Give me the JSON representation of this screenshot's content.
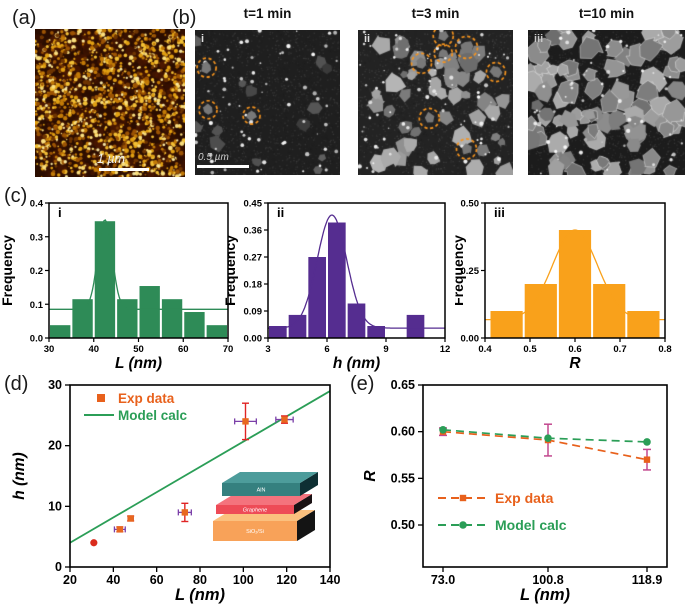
{
  "figure": {
    "panel_a": {
      "label": "(a)",
      "scale_bar_label": "1 µm"
    },
    "panel_b": {
      "label": "(b)",
      "images": [
        {
          "index_label": "i",
          "title": "t=1 min",
          "scale_bar_label": "0.5 µm"
        },
        {
          "index_label": "ii",
          "title": "t=3 min"
        },
        {
          "index_label": "iii",
          "title": "t=10 min"
        }
      ]
    },
    "panel_c": {
      "label": "(c)"
    },
    "panel_d": {
      "label": "(d)"
    },
    "panel_e": {
      "label": "(e)"
    }
  },
  "chart_data": [
    {
      "id": "c-i",
      "type": "bar",
      "index_label": "i",
      "xlabel": "L (nm)",
      "ylabel": "Frequency",
      "xlim": [
        30,
        70
      ],
      "ylim": [
        0,
        0.4
      ],
      "xticks": [
        30,
        40,
        50,
        60,
        70
      ],
      "yticks": [
        0,
        0.1,
        0.2,
        0.3,
        0.4
      ],
      "ytick_decimals": 1,
      "bar_color": "#2e8b57",
      "bin_edges": [
        30,
        35,
        40,
        45,
        50,
        55,
        60,
        65,
        70
      ],
      "values": [
        0.038,
        0.115,
        0.346,
        0.115,
        0.154,
        0.115,
        0.077,
        0.038
      ],
      "fit_curve": {
        "baseline": 0.085,
        "peak_x": 42.5,
        "peak_y": 0.35,
        "sigma": 1.6
      }
    },
    {
      "id": "c-ii",
      "type": "bar",
      "index_label": "ii",
      "xlabel": "h (nm)",
      "ylabel": "Frequency",
      "xlim": [
        3,
        12
      ],
      "ylim": [
        0,
        0.45
      ],
      "xticks": [
        3,
        6,
        9,
        12
      ],
      "yticks": [
        0,
        0.09,
        0.18,
        0.27,
        0.36,
        0.45
      ],
      "ytick_decimals": 2,
      "bar_color": "#552d90",
      "bin_edges": [
        3,
        4,
        5,
        6,
        7,
        8,
        9,
        10,
        11
      ],
      "values": [
        0.04,
        0.077,
        0.27,
        0.385,
        0.115,
        0.04,
        0,
        0.077
      ],
      "fit_curve": {
        "baseline": 0.033,
        "peak_x": 6.25,
        "peak_y": 0.41,
        "sigma": 0.75
      }
    },
    {
      "id": "c-iii",
      "type": "bar",
      "index_label": "iii",
      "xlabel": "R",
      "ylabel": "Frequency",
      "xlim": [
        0.4,
        0.8
      ],
      "ylim": [
        0,
        0.5
      ],
      "xticks": [
        0.4,
        0.5,
        0.6,
        0.7,
        0.8
      ],
      "xtick_decimals": 1,
      "yticks": [
        0,
        0.25,
        0.5
      ],
      "ytick_decimals": 2,
      "bar_color": "#f9a11b",
      "bin_edges": [
        0.41,
        0.486,
        0.562,
        0.638,
        0.714,
        0.79
      ],
      "values": [
        0.1,
        0.2,
        0.4,
        0.2,
        0.1
      ],
      "fit_curve": {
        "baseline": 0.068,
        "peak_x": 0.6,
        "peak_y": 0.4,
        "sigma": 0.05
      }
    },
    {
      "id": "d",
      "type": "scatter",
      "xlabel": "L (nm)",
      "ylabel": "h (nm)",
      "xlim": [
        20,
        140
      ],
      "ylim": [
        0,
        30
      ],
      "xticks": [
        20,
        40,
        60,
        80,
        100,
        120,
        140
      ],
      "yticks": [
        0,
        10,
        20,
        30
      ],
      "legend": [
        {
          "label": "Exp data",
          "marker": "square",
          "color": "#e8611c"
        },
        {
          "label": "Model calc",
          "marker": "line",
          "color": "#2b9e57"
        }
      ],
      "colors": {
        "marker": "#e8671f",
        "yerr": "#e02424",
        "xerr": "#7a3fa8",
        "line": "#2b9e57"
      },
      "exp_points": [
        {
          "x": 31,
          "y": 4,
          "xerr": 0,
          "yerr": 0,
          "marker": "circle",
          "color": "#da2c1c"
        },
        {
          "x": 43,
          "y": 6.2,
          "xerr": 2.5,
          "yerr": 0.4
        },
        {
          "x": 48,
          "y": 8,
          "xerr": 1.2,
          "yerr": 0.4
        },
        {
          "x": 73,
          "y": 9,
          "xerr": 3,
          "yerr": 1.5
        },
        {
          "x": 101,
          "y": 24,
          "xerr": 5,
          "yerr": 3
        },
        {
          "x": 119,
          "y": 24.3,
          "xerr": 4,
          "yerr": 0.6
        }
      ],
      "model_line": {
        "x": [
          20,
          140
        ],
        "y": [
          4,
          29
        ]
      },
      "inset_layers": [
        {
          "label": "AlN",
          "front": "#35807f",
          "top": "#4d9c9b",
          "side": "#0e2f33"
        },
        {
          "label": "Graphene",
          "front": "#ee4b57",
          "top": "#f4737d",
          "side": "#1a1214"
        },
        {
          "label": "SiO₂/Si",
          "front": "#f8a259",
          "top": "#fbc07e",
          "side": "#141414"
        }
      ]
    },
    {
      "id": "e",
      "type": "line",
      "xlabel": "L (nm)",
      "ylabel": "R",
      "categories": [
        "73.0",
        "100.8",
        "118.9"
      ],
      "ylim": [
        0.455,
        0.65
      ],
      "yticks": [
        0.5,
        0.55,
        0.6,
        0.65
      ],
      "ytick_decimals": 2,
      "series": [
        {
          "name": "Exp data",
          "color": "#e8611c",
          "marker": "square",
          "values": [
            0.6,
            0.591,
            0.57
          ],
          "yerr": [
            0.004,
            0.017,
            0.011
          ],
          "err_color": "#c2488f"
        },
        {
          "name": "Model calc",
          "color": "#2b9e57",
          "marker": "circle",
          "values": [
            0.602,
            0.593,
            0.589
          ]
        }
      ]
    }
  ]
}
